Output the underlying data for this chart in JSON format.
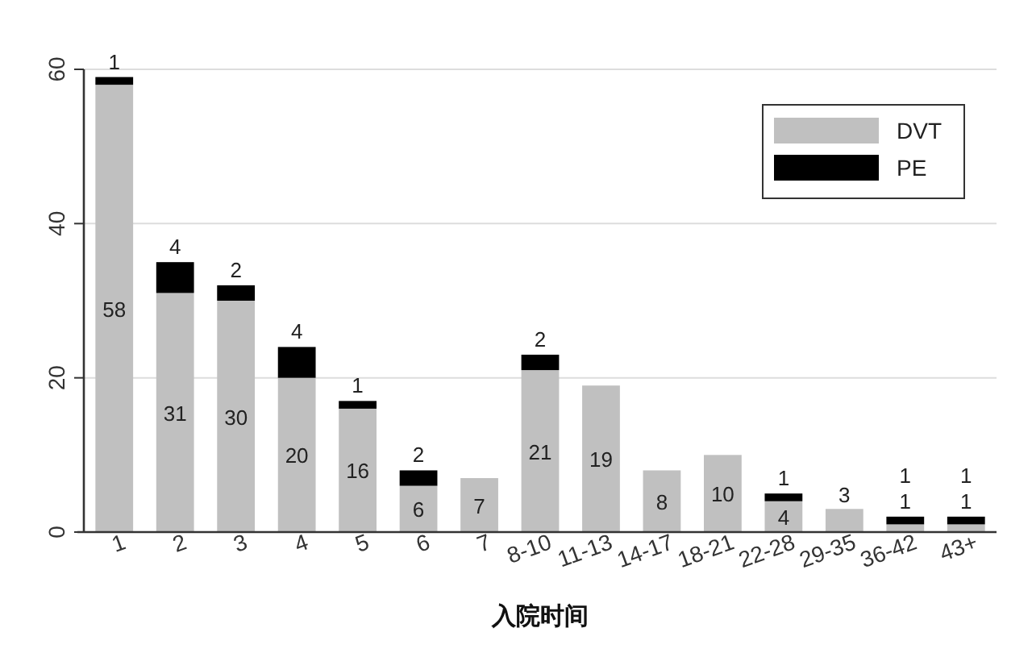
{
  "chart_data": {
    "type": "bar",
    "stacked": true,
    "xlabel": "入院时间",
    "categories": [
      "1",
      "2",
      "3",
      "4",
      "5",
      "6",
      "7",
      "8-10",
      "11-13",
      "14-17",
      "18-21",
      "22-28",
      "29-35",
      "36-42",
      "43+"
    ],
    "series": [
      {
        "name": "DVT",
        "color": "#c0c0c0",
        "values": [
          58,
          31,
          30,
          20,
          16,
          6,
          7,
          21,
          19,
          8,
          10,
          4,
          3,
          1,
          1
        ],
        "value_labels": [
          "58",
          "31",
          "30",
          "20",
          "16",
          "6",
          "7",
          "21",
          "19",
          "8",
          "10",
          "4",
          "3",
          "1",
          "1"
        ]
      },
      {
        "name": "PE",
        "color": "#000000",
        "values": [
          1,
          4,
          2,
          4,
          1,
          2,
          null,
          2,
          null,
          null,
          null,
          1,
          null,
          1,
          1
        ],
        "value_labels": [
          "1",
          "4",
          "2",
          "4",
          "1",
          "2",
          null,
          "2",
          null,
          null,
          null,
          "1",
          null,
          "1",
          "1"
        ]
      }
    ],
    "ylim": [
      0,
      60
    ],
    "yticks": [
      0,
      20,
      40,
      60
    ],
    "grid": "y",
    "legend": "top right"
  }
}
